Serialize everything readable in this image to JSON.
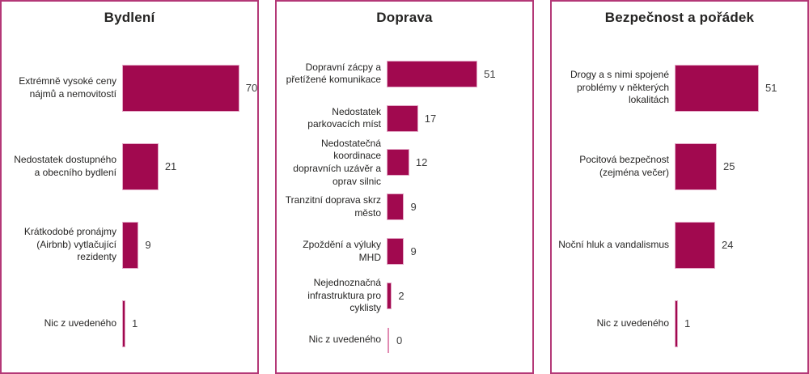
{
  "chart_data": [
    {
      "type": "bar",
      "orientation": "horizontal",
      "title": "Bydlení",
      "categories": [
        "Extrémně vysoké ceny nájmů a nemovitostí",
        "Nedostatek dostupného a obecního bydlení",
        "Krátkodobé pronájmy (Airbnb) vytlačující rezidenty",
        "Nic z uvedeného"
      ],
      "values": [
        70,
        21,
        9,
        1
      ],
      "data_labels": [
        "70",
        "21",
        "9",
        "1"
      ],
      "legend": "none",
      "grid": "off"
    },
    {
      "type": "bar",
      "orientation": "horizontal",
      "title": "Doprava",
      "categories": [
        "Dopravní zácpy a přetížené komunikace",
        "Nedostatek parkovacích míst",
        "Nedostatečná koordinace dopravních uzávěr a oprav silnic",
        "Tranzitní doprava skrz město",
        "Zpoždění a výluky MHD",
        "Nejednoznačná infrastruktura pro cyklisty",
        "Nic z uvedeného"
      ],
      "values": [
        51,
        17,
        12,
        9,
        9,
        2,
        0
      ],
      "data_labels": [
        "51",
        "17",
        "12",
        "9",
        "9",
        "2",
        "0"
      ],
      "legend": "none",
      "grid": "off"
    },
    {
      "type": "bar",
      "orientation": "horizontal",
      "title": "Bezpečnost a pořádek",
      "categories": [
        "Drogy a s nimi spojené problémy v některých lokalitách",
        "Pocitová bezpečnost (zejména večer)",
        "Noční hluk a vandalismus",
        "Nic z uvedeného"
      ],
      "values": [
        51,
        25,
        24,
        1
      ],
      "data_labels": [
        "51",
        "25",
        "24",
        "1"
      ],
      "legend": "none",
      "grid": "off"
    }
  ],
  "colors": {
    "bar": "#a1094f",
    "bar_stroke": "#e3a8c6",
    "zero_bar": "#e18bb2",
    "panel_border": "#b43877",
    "title_text": "#252423",
    "label_text": "#252423",
    "value_text": "#3d3d3d",
    "background": "#ffffff"
  }
}
